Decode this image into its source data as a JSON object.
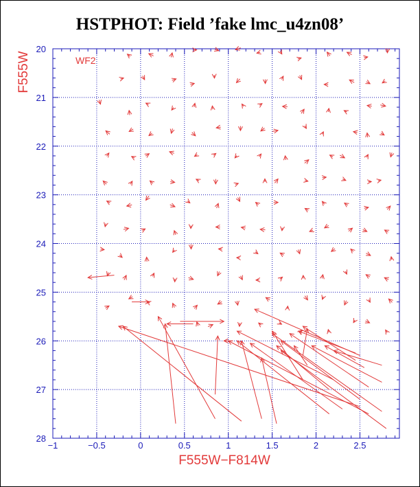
{
  "chart_data": {
    "type": "scatter",
    "title": "HSTPHOT: Field ’fake lmc_u4zn08’",
    "panel_label": "WF2",
    "xlabel": "F555W−F814W",
    "ylabel": "F555W",
    "xlim": [
      -1.0,
      2.95
    ],
    "ylim": [
      28,
      20
    ],
    "x_ticks": [
      -1,
      -0.5,
      0,
      0.5,
      1,
      1.5,
      2,
      2.5
    ],
    "x_tick_labels": [
      "−1",
      "−0.5",
      "0",
      "0.5",
      "1",
      "1.5",
      "2",
      "2.5"
    ],
    "y_ticks": [
      20,
      21,
      22,
      23,
      24,
      25,
      26,
      27,
      28
    ],
    "y_tick_labels": [
      "20",
      "21",
      "22",
      "23",
      "24",
      "25",
      "26",
      "27",
      "28"
    ],
    "grid": true,
    "colors": {
      "axes": "#1a1ab8",
      "grid": "#1a1ab8",
      "vectors": "#e23a3a",
      "text": "#000000"
    },
    "grid_rows_color": [
      -0.4,
      -0.15,
      0.1,
      0.35,
      0.62,
      0.87,
      1.12,
      1.37,
      1.62,
      1.87,
      2.12,
      2.37,
      2.62,
      2.8
    ],
    "grid_rows_mag": [
      20.1,
      20.65,
      21.2,
      21.7,
      22.2,
      22.7,
      23.2,
      23.7,
      24.2,
      24.7,
      25.2,
      25.7
    ],
    "long_vectors": [
      {
        "x0": 0.4,
        "y0": 27.7,
        "x1": 0.28,
        "y1": 25.65
      },
      {
        "x0": 0.85,
        "y0": 27.1,
        "x1": 0.88,
        "y1": 25.9
      },
      {
        "x0": 1.55,
        "y0": 27.7,
        "x1": 1.38,
        "y1": 26.35
      },
      {
        "x0": 1.38,
        "y0": 27.6,
        "x1": 1.15,
        "y1": 26.0
      },
      {
        "x0": 0.85,
        "y0": 27.6,
        "x1": 0.2,
        "y1": 25.5
      },
      {
        "x0": 1.15,
        "y0": 27.65,
        "x1": -0.2,
        "y1": 25.7
      },
      {
        "x0": 2.5,
        "y0": 27.35,
        "x1": -0.25,
        "y1": 25.7
      },
      {
        "x0": 0.45,
        "y0": 25.6,
        "x1": 0.95,
        "y1": 25.6
      },
      {
        "x0": 2.6,
        "y0": 27.5,
        "x1": 1.0,
        "y1": 26.0
      },
      {
        "x0": 2.15,
        "y0": 27.5,
        "x1": 1.1,
        "y1": 26.0
      },
      {
        "x0": 2.3,
        "y0": 27.4,
        "x1": 1.25,
        "y1": 26.05
      },
      {
        "x0": 2.5,
        "y0": 27.2,
        "x1": 1.6,
        "y1": 26.0
      },
      {
        "x0": 2.75,
        "y0": 27.45,
        "x1": 1.5,
        "y1": 25.85
      },
      {
        "x0": 2.15,
        "y0": 27.0,
        "x1": 1.55,
        "y1": 26.1
      },
      {
        "x0": 2.6,
        "y0": 26.95,
        "x1": 1.7,
        "y1": 25.85
      },
      {
        "x0": 2.8,
        "y0": 27.8,
        "x1": 1.6,
        "y1": 26.2
      },
      {
        "x0": 2.75,
        "y0": 26.85,
        "x1": 1.95,
        "y1": 26.1
      },
      {
        "x0": 2.45,
        "y0": 26.25,
        "x1": 1.8,
        "y1": 25.8
      },
      {
        "x0": 2.55,
        "y0": 26.55,
        "x1": 2.1,
        "y1": 26.1
      },
      {
        "x0": 2.45,
        "y0": 26.4,
        "x1": 1.85,
        "y1": 25.7
      },
      {
        "x0": 2.5,
        "y0": 26.3,
        "x1": 1.3,
        "y1": 25.35
      },
      {
        "x0": 2.2,
        "y0": 26.8,
        "x1": 1.1,
        "y1": 25.8
      },
      {
        "x0": 1.85,
        "y0": 26.8,
        "x1": 1.5,
        "y1": 25.8
      },
      {
        "x0": 1.9,
        "y0": 26.5,
        "x1": 1.75,
        "y1": 26.1
      },
      {
        "x0": 1.85,
        "y0": 26.3,
        "x1": 1.9,
        "y1": 25.75
      },
      {
        "x0": 2.75,
        "y0": 26.5,
        "x1": 2.2,
        "y1": 26.2
      },
      {
        "x0": -0.1,
        "y0": 25.2,
        "x1": 0.1,
        "y1": 25.2
      },
      {
        "x0": -0.3,
        "y0": 24.65,
        "x1": -0.6,
        "y1": 24.7
      },
      {
        "x0": 0.6,
        "y0": 25.65,
        "x1": 0.3,
        "y1": 25.65
      },
      {
        "x0": 1.05,
        "y0": 26.0,
        "x1": 0.95,
        "y1": 26.0
      }
    ]
  }
}
